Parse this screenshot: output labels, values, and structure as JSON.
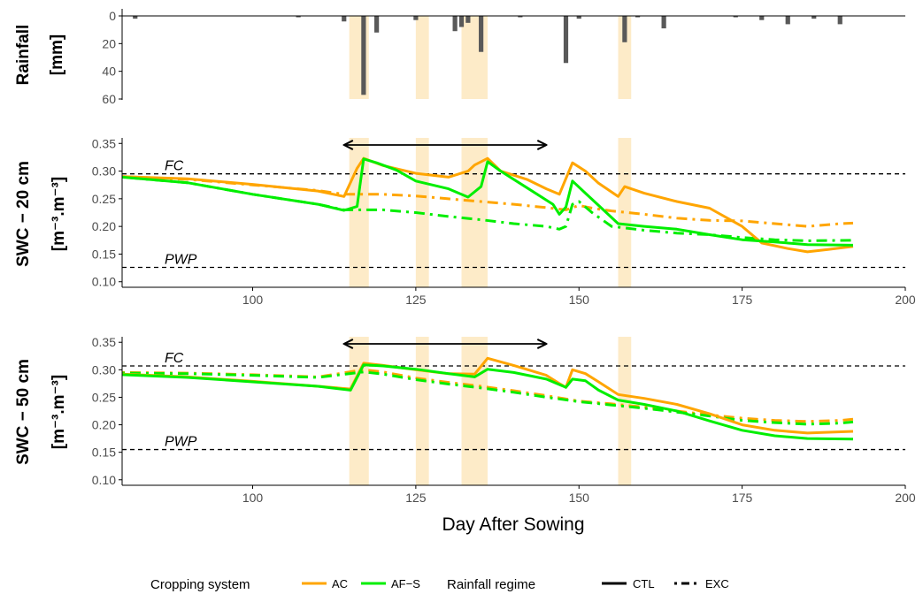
{
  "colors": {
    "AC": "#FFA500",
    "AF-S": "#00EE00",
    "rain_bar": "#595959",
    "rain_band": "#FDEBC8",
    "axis": "#000000",
    "tick_text": "#4D4D4D"
  },
  "legend": {
    "cropping_title": "Cropping system",
    "ac": "AC",
    "afs": "AF−S",
    "rain_title": "Rainfall regime",
    "ctl": "CTL",
    "exc": "EXC",
    "placement": "bottom"
  },
  "chart_data": [
    {
      "type": "bar",
      "panel": "rainfall",
      "ylabel_line1": "Rainfall",
      "ylabel_line2": "[mm]",
      "ylim": [
        0,
        60
      ],
      "y_reversed": true,
      "yticks": [
        "0",
        "20",
        "40",
        "60"
      ],
      "xlim": [
        80,
        200
      ],
      "x": [
        82,
        107,
        114,
        117,
        119,
        125,
        131,
        132,
        133,
        135,
        141,
        148,
        150,
        157,
        159,
        163,
        174,
        178,
        182,
        186,
        190
      ],
      "values": [
        2,
        1,
        4,
        57,
        12,
        3,
        11,
        8,
        5,
        26,
        1,
        34,
        2,
        19,
        1,
        9,
        1,
        3,
        6,
        2,
        6
      ],
      "rain_events": [
        [
          114.8,
          117.8
        ],
        [
          125.0,
          127.0
        ],
        [
          132.0,
          136.0
        ],
        [
          156.0,
          158.0
        ]
      ]
    },
    {
      "type": "line",
      "panel": "swc_20cm",
      "ylabel_line1": "SWC − 20 cm",
      "ylabel_line2": "[m⁻³.m⁻³]",
      "ylim": [
        0.09,
        0.36
      ],
      "yticks": [
        "0.10",
        "0.15",
        "0.20",
        "0.25",
        "0.30",
        "0.35"
      ],
      "xlim": [
        80,
        200
      ],
      "xticks": [
        "100",
        "125",
        "150",
        "175",
        "200"
      ],
      "fc": {
        "label": "FC",
        "value": 0.295
      },
      "pwp": {
        "label": "PWP",
        "value": 0.126
      },
      "arrow_range": [
        114,
        145
      ],
      "series": [
        {
          "name": "AC",
          "regime": "CTL",
          "color": "#FFA500",
          "points": [
            [
              80,
              0.29
            ],
            [
              90,
              0.286
            ],
            [
              100,
              0.276
            ],
            [
              110,
              0.264
            ],
            [
              114,
              0.254
            ],
            [
              116,
              0.305
            ],
            [
              117,
              0.323
            ],
            [
              120,
              0.31
            ],
            [
              125,
              0.296
            ],
            [
              130,
              0.289
            ],
            [
              133,
              0.3
            ],
            [
              134,
              0.311
            ],
            [
              136,
              0.323
            ],
            [
              138,
              0.3
            ],
            [
              142,
              0.285
            ],
            [
              145,
              0.268
            ],
            [
              147,
              0.258
            ],
            [
              149,
              0.315
            ],
            [
              151,
              0.3
            ],
            [
              153,
              0.278
            ],
            [
              156,
              0.254
            ],
            [
              157,
              0.272
            ],
            [
              160,
              0.26
            ],
            [
              165,
              0.245
            ],
            [
              170,
              0.233
            ],
            [
              175,
              0.2
            ],
            [
              178,
              0.17
            ],
            [
              182,
              0.16
            ],
            [
              185,
              0.154
            ],
            [
              188,
              0.158
            ],
            [
              192,
              0.164
            ]
          ]
        },
        {
          "name": "AF−S",
          "regime": "CTL",
          "color": "#00EE00",
          "points": [
            [
              80,
              0.289
            ],
            [
              90,
              0.279
            ],
            [
              100,
              0.258
            ],
            [
              110,
              0.24
            ],
            [
              114,
              0.229
            ],
            [
              116,
              0.236
            ],
            [
              117,
              0.322
            ],
            [
              119,
              0.315
            ],
            [
              122,
              0.302
            ],
            [
              125,
              0.282
            ],
            [
              130,
              0.268
            ],
            [
              133,
              0.253
            ],
            [
              135,
              0.272
            ],
            [
              136,
              0.317
            ],
            [
              138,
              0.3
            ],
            [
              142,
              0.27
            ],
            [
              146,
              0.24
            ],
            [
              147,
              0.222
            ],
            [
              148,
              0.235
            ],
            [
              149,
              0.282
            ],
            [
              151,
              0.26
            ],
            [
              153,
              0.238
            ],
            [
              156,
              0.205
            ],
            [
              160,
              0.2
            ],
            [
              165,
              0.195
            ],
            [
              170,
              0.185
            ],
            [
              175,
              0.176
            ],
            [
              180,
              0.172
            ],
            [
              185,
              0.167
            ],
            [
              192,
              0.166
            ]
          ]
        },
        {
          "name": "AC",
          "regime": "EXC",
          "color": "#FFA500",
          "points": [
            [
              80,
              0.29
            ],
            [
              90,
              0.285
            ],
            [
              100,
              0.275
            ],
            [
              110,
              0.265
            ],
            [
              114,
              0.258
            ],
            [
              116,
              0.258
            ],
            [
              120,
              0.258
            ],
            [
              125,
              0.255
            ],
            [
              130,
              0.25
            ],
            [
              135,
              0.245
            ],
            [
              140,
              0.24
            ],
            [
              145,
              0.234
            ],
            [
              148,
              0.23
            ],
            [
              150,
              0.238
            ],
            [
              152,
              0.233
            ],
            [
              155,
              0.228
            ],
            [
              160,
              0.222
            ],
            [
              165,
              0.215
            ],
            [
              170,
              0.211
            ],
            [
              175,
              0.21
            ],
            [
              180,
              0.205
            ],
            [
              185,
              0.2
            ],
            [
              190,
              0.205
            ],
            [
              192,
              0.206
            ]
          ]
        },
        {
          "name": "AF−S",
          "regime": "EXC",
          "color": "#00EE00",
          "points": [
            [
              80,
              0.289
            ],
            [
              90,
              0.279
            ],
            [
              100,
              0.258
            ],
            [
              110,
              0.24
            ],
            [
              114,
              0.23
            ],
            [
              120,
              0.23
            ],
            [
              125,
              0.225
            ],
            [
              130,
              0.218
            ],
            [
              135,
              0.212
            ],
            [
              140,
              0.205
            ],
            [
              145,
              0.2
            ],
            [
              147,
              0.195
            ],
            [
              148,
              0.2
            ],
            [
              149,
              0.24
            ],
            [
              150,
              0.245
            ],
            [
              152,
              0.225
            ],
            [
              155,
              0.2
            ],
            [
              160,
              0.193
            ],
            [
              165,
              0.188
            ],
            [
              170,
              0.185
            ],
            [
              175,
              0.18
            ],
            [
              180,
              0.176
            ],
            [
              185,
              0.174
            ],
            [
              192,
              0.175
            ]
          ]
        }
      ]
    },
    {
      "type": "line",
      "panel": "swc_50cm",
      "ylabel_line1": "SWC − 50 cm",
      "ylabel_line2": "[m⁻³.m⁻³]",
      "xlabel": "Day After Sowing",
      "ylim": [
        0.09,
        0.36
      ],
      "yticks": [
        "0.10",
        "0.15",
        "0.20",
        "0.25",
        "0.30",
        "0.35"
      ],
      "xlim": [
        80,
        200
      ],
      "xticks": [
        "100",
        "125",
        "150",
        "175",
        "200"
      ],
      "fc": {
        "label": "FC",
        "value": 0.307
      },
      "pwp": {
        "label": "PWP",
        "value": 0.155
      },
      "arrow_range": [
        114,
        145
      ],
      "series": [
        {
          "name": "AC",
          "regime": "CTL",
          "color": "#FFA500",
          "points": [
            [
              80,
              0.292
            ],
            [
              90,
              0.287
            ],
            [
              100,
              0.279
            ],
            [
              110,
              0.27
            ],
            [
              115,
              0.265
            ],
            [
              117,
              0.312
            ],
            [
              120,
              0.308
            ],
            [
              125,
              0.3
            ],
            [
              130,
              0.293
            ],
            [
              134,
              0.292
            ],
            [
              136,
              0.321
            ],
            [
              140,
              0.308
            ],
            [
              145,
              0.29
            ],
            [
              147,
              0.275
            ],
            [
              148,
              0.268
            ],
            [
              149,
              0.3
            ],
            [
              151,
              0.293
            ],
            [
              153,
              0.278
            ],
            [
              156,
              0.255
            ],
            [
              160,
              0.248
            ],
            [
              165,
              0.237
            ],
            [
              170,
              0.22
            ],
            [
              175,
              0.2
            ],
            [
              180,
              0.19
            ],
            [
              185,
              0.185
            ],
            [
              192,
              0.188
            ]
          ]
        },
        {
          "name": "AF−S",
          "regime": "CTL",
          "color": "#00EE00",
          "points": [
            [
              80,
              0.291
            ],
            [
              90,
              0.286
            ],
            [
              100,
              0.278
            ],
            [
              110,
              0.27
            ],
            [
              115,
              0.263
            ],
            [
              117,
              0.309
            ],
            [
              120,
              0.307
            ],
            [
              125,
              0.301
            ],
            [
              130,
              0.293
            ],
            [
              134,
              0.287
            ],
            [
              136,
              0.301
            ],
            [
              140,
              0.295
            ],
            [
              145,
              0.283
            ],
            [
              148,
              0.268
            ],
            [
              149,
              0.283
            ],
            [
              151,
              0.28
            ],
            [
              153,
              0.263
            ],
            [
              156,
              0.245
            ],
            [
              160,
              0.237
            ],
            [
              165,
              0.225
            ],
            [
              170,
              0.207
            ],
            [
              175,
              0.19
            ],
            [
              180,
              0.18
            ],
            [
              185,
              0.175
            ],
            [
              192,
              0.174
            ]
          ]
        },
        {
          "name": "AC",
          "regime": "EXC",
          "color": "#FFA500",
          "points": [
            [
              80,
              0.295
            ],
            [
              90,
              0.294
            ],
            [
              100,
              0.291
            ],
            [
              110,
              0.287
            ],
            [
              117,
              0.3
            ],
            [
              120,
              0.296
            ],
            [
              125,
              0.285
            ],
            [
              130,
              0.277
            ],
            [
              135,
              0.27
            ],
            [
              140,
              0.262
            ],
            [
              145,
              0.253
            ],
            [
              150,
              0.243
            ],
            [
              155,
              0.238
            ],
            [
              160,
              0.232
            ],
            [
              165,
              0.225
            ],
            [
              170,
              0.218
            ],
            [
              175,
              0.212
            ],
            [
              180,
              0.208
            ],
            [
              185,
              0.206
            ],
            [
              190,
              0.208
            ],
            [
              192,
              0.21
            ]
          ]
        },
        {
          "name": "AF−S",
          "regime": "EXC",
          "color": "#00EE00",
          "points": [
            [
              80,
              0.294
            ],
            [
              90,
              0.293
            ],
            [
              100,
              0.29
            ],
            [
              110,
              0.286
            ],
            [
              117,
              0.296
            ],
            [
              120,
              0.292
            ],
            [
              125,
              0.282
            ],
            [
              130,
              0.274
            ],
            [
              135,
              0.267
            ],
            [
              140,
              0.259
            ],
            [
              145,
              0.25
            ],
            [
              150,
              0.242
            ],
            [
              155,
              0.236
            ],
            [
              160,
              0.23
            ],
            [
              165,
              0.223
            ],
            [
              170,
              0.216
            ],
            [
              175,
              0.208
            ],
            [
              180,
              0.204
            ],
            [
              185,
              0.201
            ],
            [
              190,
              0.203
            ],
            [
              192,
              0.205
            ]
          ]
        }
      ]
    }
  ]
}
